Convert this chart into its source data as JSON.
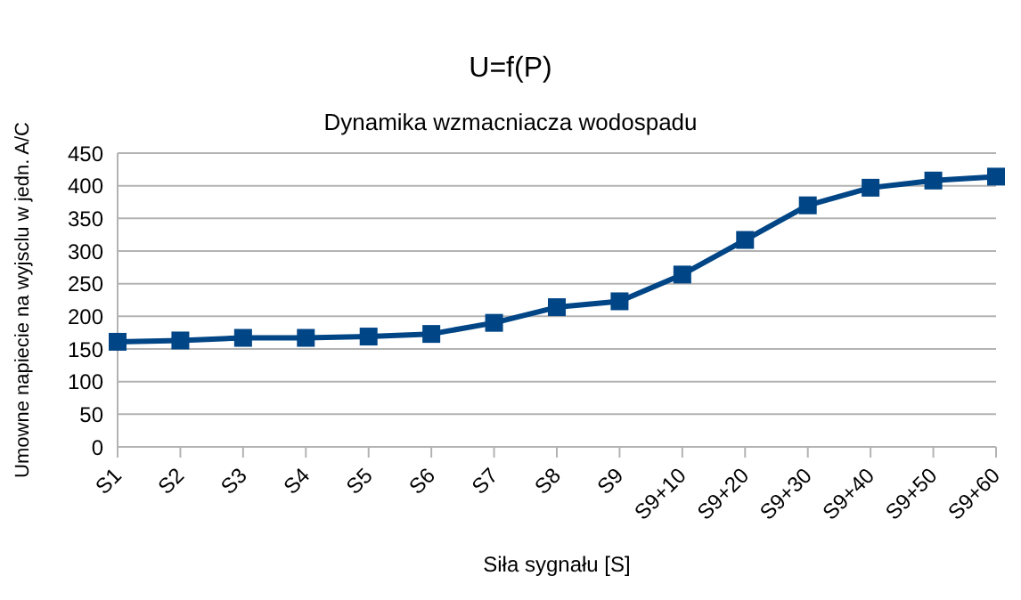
{
  "chart_data": {
    "type": "line",
    "title": "U=f(P)",
    "subtitle": "Dynamika wzmacniacza wodospadu",
    "xlabel": "Siła sygnału [S]",
    "ylabel": "Umowne napiecie na wyjsclu w jedn. A/C",
    "categories": [
      "S1",
      "S2",
      "S3",
      "S4",
      "S5",
      "S6",
      "S7",
      "S8",
      "S9",
      "S9+10",
      "S9+20",
      "S9+30",
      "S9+40",
      "S9+50",
      "S9+60"
    ],
    "series": [
      {
        "color": "#004586",
        "values": [
          161,
          163,
          167,
          167,
          169,
          173,
          190,
          214,
          223,
          264,
          317,
          370,
          397,
          408,
          414
        ]
      }
    ],
    "ylim": [
      0,
      450
    ],
    "yticks": [
      0,
      50,
      100,
      150,
      200,
      250,
      300,
      350,
      400,
      450
    ],
    "grid": "y",
    "marker": "square",
    "line_style": "solid"
  }
}
